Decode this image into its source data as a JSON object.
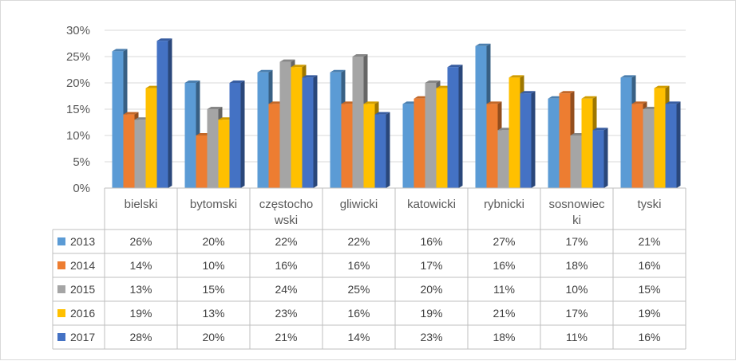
{
  "chart_data": {
    "type": "bar",
    "categories": [
      "bielski",
      "bytomski",
      "częstochowski",
      "gliwicki",
      "katowicki",
      "rybnicki",
      "sosnowiecki",
      "tyski"
    ],
    "category_lines": [
      [
        "bielski"
      ],
      [
        "bytomski"
      ],
      [
        "częstocho",
        "wski"
      ],
      [
        "gliwicki"
      ],
      [
        "katowicki"
      ],
      [
        "rybnicki"
      ],
      [
        "sosnowiec",
        "ki"
      ],
      [
        "tyski"
      ]
    ],
    "series": [
      {
        "name": "2013",
        "color": "#5b9bd5",
        "values": [
          26,
          20,
          22,
          22,
          16,
          27,
          17,
          21
        ],
        "labels": [
          "26%",
          "20%",
          "22%",
          "22%",
          "16%",
          "27%",
          "17%",
          "21%"
        ]
      },
      {
        "name": "2014",
        "color": "#ed7d31",
        "values": [
          14,
          10,
          16,
          16,
          17,
          16,
          18,
          16
        ],
        "labels": [
          "14%",
          "10%",
          "16%",
          "16%",
          "17%",
          "16%",
          "18%",
          "16%"
        ]
      },
      {
        "name": "2015",
        "color": "#a5a5a5",
        "values": [
          13,
          15,
          24,
          25,
          20,
          11,
          10,
          15
        ],
        "labels": [
          "13%",
          "15%",
          "24%",
          "25%",
          "20%",
          "11%",
          "10%",
          "15%"
        ]
      },
      {
        "name": "2016",
        "color": "#ffc000",
        "values": [
          19,
          13,
          23,
          16,
          19,
          21,
          17,
          19
        ],
        "labels": [
          "19%",
          "13%",
          "23%",
          "16%",
          "19%",
          "21%",
          "17%",
          "19%"
        ]
      },
      {
        "name": "2017",
        "color": "#4472c4",
        "values": [
          28,
          20,
          21,
          14,
          23,
          18,
          11,
          16
        ],
        "labels": [
          "28%",
          "20%",
          "21%",
          "14%",
          "23%",
          "18%",
          "11%",
          "16%"
        ]
      }
    ],
    "y_ticks": [
      "0%",
      "5%",
      "10%",
      "15%",
      "20%",
      "25%",
      "30%"
    ],
    "ylim": [
      0,
      30
    ],
    "grid": true,
    "data_table": true,
    "bar_style": "3d"
  }
}
